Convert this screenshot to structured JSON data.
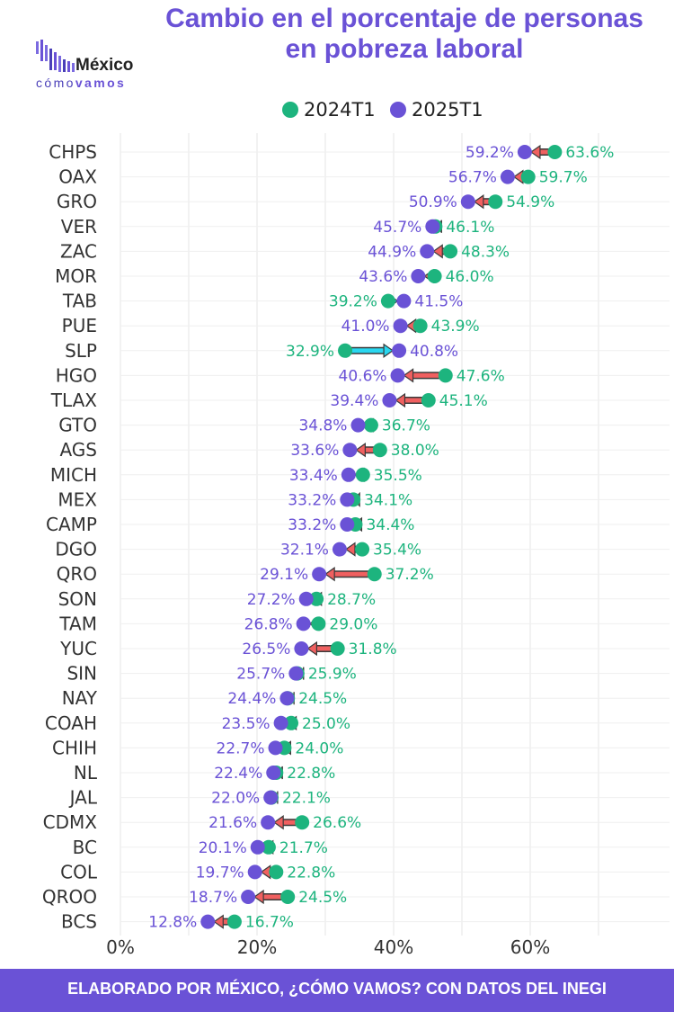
{
  "title": {
    "line1": "Cambio en el porcentaje de personas",
    "line2": "en pobreza laboral"
  },
  "logo": {
    "brand_main": "México",
    "brand_sub_1": "cómo",
    "brand_sub_2": "vamos"
  },
  "footer": {
    "text": "ELABORADO POR MÉXICO, ¿CÓMO VAMOS? CON DATOS DEL INEGI"
  },
  "colors": {
    "series_2024": "#1db47e",
    "series_2025": "#6a52d6",
    "increase_bar": "#29d7f0",
    "decrease_bar": "#f06060",
    "title": "#6a52d6",
    "footer_bg": "#6a52d6"
  },
  "chart_data": {
    "type": "dumbbell",
    "x_tick_labels": [
      "0%",
      "20%",
      "40%",
      "60%"
    ],
    "x_ticks": [
      0,
      20,
      40,
      60
    ],
    "xlim": [
      0,
      75
    ],
    "grid": true,
    "legend_position": "top-center",
    "series": [
      {
        "name": "2024T1",
        "key": "v2024"
      },
      {
        "name": "2025T1",
        "key": "v2025"
      }
    ],
    "categories": [
      "CHPS",
      "OAX",
      "GRO",
      "VER",
      "ZAC",
      "MOR",
      "TAB",
      "PUE",
      "SLP",
      "HGO",
      "TLAX",
      "GTO",
      "AGS",
      "MICH",
      "MEX",
      "CAMP",
      "DGO",
      "QRO",
      "SON",
      "TAM",
      "YUC",
      "SIN",
      "NAY",
      "COAH",
      "CHIH",
      "NL",
      "JAL",
      "CDMX",
      "BC",
      "COL",
      "QROO",
      "BCS"
    ],
    "v2024": [
      63.6,
      59.7,
      54.9,
      46.1,
      48.3,
      46.0,
      39.2,
      43.9,
      32.9,
      47.6,
      45.1,
      36.7,
      38.0,
      35.5,
      34.1,
      34.4,
      35.4,
      37.2,
      28.7,
      29.0,
      31.8,
      25.9,
      24.5,
      25.0,
      24.0,
      22.8,
      22.1,
      26.6,
      21.7,
      22.8,
      24.5,
      16.7
    ],
    "v2025": [
      59.2,
      56.7,
      50.9,
      45.7,
      44.9,
      43.6,
      41.5,
      41.0,
      40.8,
      40.6,
      39.4,
      34.8,
      33.6,
      33.4,
      33.2,
      33.2,
      32.1,
      29.1,
      27.2,
      26.8,
      26.5,
      25.7,
      24.4,
      23.5,
      22.7,
      22.4,
      22.0,
      21.6,
      20.1,
      19.7,
      18.7,
      12.8
    ]
  }
}
